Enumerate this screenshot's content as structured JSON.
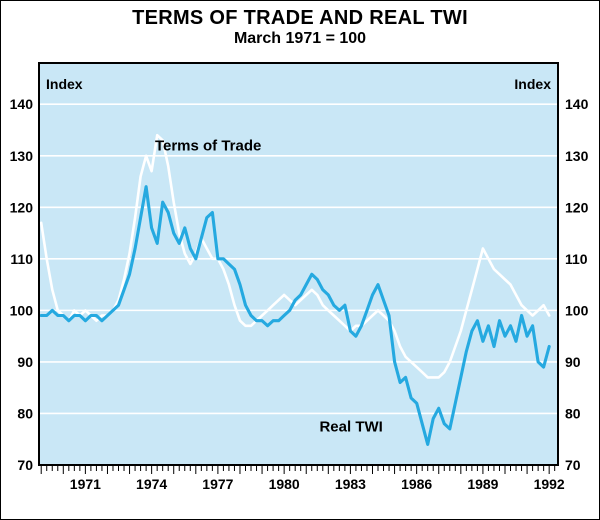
{
  "chart_data": {
    "type": "line",
    "title": "TERMS OF TRADE AND REAL TWI",
    "subtitle": "March 1971 = 100",
    "ylabel_left": "Index",
    "ylabel_right": "Index",
    "ylim": [
      70,
      140
    ],
    "yticks": [
      70,
      80,
      90,
      100,
      110,
      120,
      130,
      140
    ],
    "xticks": [
      1971,
      1974,
      1977,
      1980,
      1983,
      1986,
      1989,
      1992
    ],
    "x_start": 1969.0,
    "x_step": 0.25,
    "grid": true,
    "grid_color": "#ffffff",
    "plot_bg": "#c9e7f6",
    "axis_color": "#000000",
    "legend_position": "inline-labels",
    "series": [
      {
        "name": "Terms of Trade",
        "color": "#ffffff",
        "values": [
          117,
          110,
          104,
          100,
          99,
          98,
          100,
          99,
          100,
          99,
          98,
          99,
          99,
          100,
          102,
          106,
          111,
          118,
          126,
          130,
          127,
          134,
          133,
          128,
          121,
          115,
          111,
          109,
          111,
          114,
          112,
          110,
          110,
          108,
          105,
          101,
          98,
          97,
          97,
          98,
          99,
          100,
          101,
          102,
          103,
          102,
          101,
          102,
          103,
          104,
          103,
          101,
          100,
          99,
          98,
          97,
          96,
          97,
          97,
          98,
          99,
          100,
          99,
          98,
          96,
          93,
          91,
          90,
          89,
          88,
          87,
          87,
          87,
          88,
          90,
          93,
          96,
          100,
          104,
          108,
          112,
          110,
          108,
          107,
          106,
          105,
          103,
          101,
          100,
          99,
          100,
          101,
          99
        ]
      },
      {
        "name": "Real TWI",
        "color": "#25a9e0",
        "values": [
          99,
          99,
          100,
          99,
          99,
          98,
          99,
          99,
          98,
          99,
          99,
          98,
          99,
          100,
          101,
          104,
          107,
          112,
          118,
          124,
          116,
          113,
          121,
          119,
          115,
          113,
          116,
          112,
          110,
          114,
          118,
          119,
          110,
          110,
          109,
          108,
          105,
          101,
          99,
          98,
          98,
          97,
          98,
          98,
          99,
          100,
          102,
          103,
          105,
          107,
          106,
          104,
          103,
          101,
          100,
          101,
          96,
          95,
          97,
          100,
          103,
          105,
          102,
          99,
          90,
          86,
          87,
          83,
          82,
          78,
          74,
          79,
          81,
          78,
          77,
          82,
          87,
          92,
          96,
          98,
          94,
          97,
          93,
          98,
          95,
          97,
          94,
          99,
          95,
          97,
          90,
          89,
          93
        ]
      }
    ],
    "annotations": [
      {
        "text": "Terms of Trade",
        "x": 1974.15,
        "y": 131
      },
      {
        "text": "Real TWI",
        "x": 1981.6,
        "y": 76.5
      }
    ]
  }
}
